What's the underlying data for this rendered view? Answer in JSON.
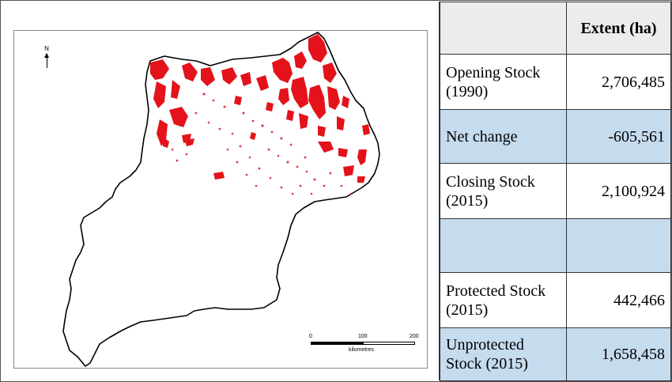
{
  "map": {
    "north_label": "N",
    "scale": {
      "ticks": [
        "0",
        "100",
        "200"
      ],
      "unit": "kilometres"
    },
    "colors": {
      "forest": "#e3121b",
      "outline": "#000000"
    }
  },
  "table": {
    "header": {
      "label": "",
      "value": "Extent (ha)"
    },
    "rows": [
      {
        "label": "Opening Stock (1990)",
        "value": "2,706,485",
        "shade": "white"
      },
      {
        "label": "Net change",
        "value": "-605,561",
        "shade": "blue"
      },
      {
        "label": "Closing Stock (2015)",
        "value": "2,100,924",
        "shade": "white"
      },
      {
        "label": "",
        "value": "",
        "shade": "blue"
      },
      {
        "label": "Protected Stock (2015)",
        "value": "442,466",
        "shade": "white"
      },
      {
        "label": "Unprotected Stock (2015)",
        "value": "1,658,458",
        "shade": "blue"
      }
    ]
  }
}
